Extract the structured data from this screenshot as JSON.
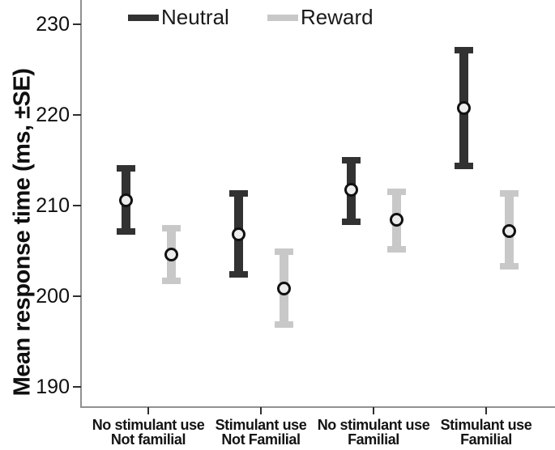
{
  "chart_data": {
    "type": "errorbar",
    "title": "",
    "xlabel": "",
    "ylabel": "Mean response time (ms, ±SE)",
    "ylim": [
      187.8,
      232.6
    ],
    "yticks": [
      230,
      220,
      210,
      200,
      190
    ],
    "grid": false,
    "legend_position": "top-inside",
    "marker": {
      "shape": "open-circle",
      "fill": "#ececec",
      "ring": "#111111"
    },
    "categories": [
      {
        "line1": "No stimulant use",
        "line2": "Not familial"
      },
      {
        "line1": "Stimulant use",
        "line2": "Not Familial"
      },
      {
        "line1": "No stimulant use",
        "line2": "Familial"
      },
      {
        "line1": "Stimulant use",
        "line2": "Familial"
      }
    ],
    "series": [
      {
        "name": "Neutral",
        "color": "#323232",
        "points": [
          {
            "mean": 210.6,
            "lower": 207.1,
            "upper": 214.1
          },
          {
            "mean": 206.8,
            "lower": 202.4,
            "upper": 211.3
          },
          {
            "mean": 211.7,
            "lower": 208.2,
            "upper": 215.0
          },
          {
            "mean": 220.7,
            "lower": 214.4,
            "upper": 227.1
          }
        ]
      },
      {
        "name": "Reward",
        "color": "#c8c8c8",
        "points": [
          {
            "mean": 204.6,
            "lower": 201.7,
            "upper": 207.5
          },
          {
            "mean": 200.9,
            "lower": 196.9,
            "upper": 204.9
          },
          {
            "mean": 208.4,
            "lower": 205.2,
            "upper": 211.5
          },
          {
            "mean": 207.2,
            "lower": 203.3,
            "upper": 211.3
          }
        ]
      }
    ]
  },
  "axes": {
    "axis_line_color": "#919191",
    "tick_color": "#2e2e2e",
    "text_color": "#0f0f0f"
  }
}
